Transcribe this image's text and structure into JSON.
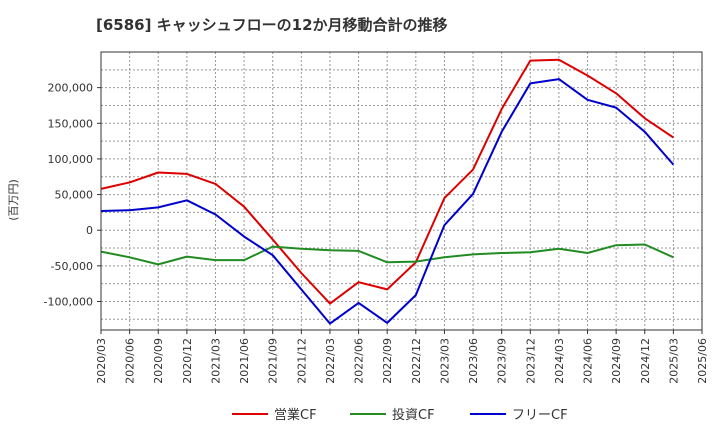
{
  "chart_data": {
    "type": "line",
    "title": "[6586]  キャッシュフローの12か月移動合計の推移",
    "ylabel": "(百万円)",
    "xlabel": "",
    "ylim": [
      -140000,
      250000
    ],
    "yticks": [
      -100000,
      -50000,
      0,
      50000,
      100000,
      150000,
      200000
    ],
    "ytick_labels": [
      "-100,000",
      "-50,000",
      "0",
      "50,000",
      "100,000",
      "150,000",
      "200,000"
    ],
    "grid": true,
    "legend_position": "bottom",
    "categories": [
      "2020/03",
      "2020/06",
      "2020/09",
      "2020/12",
      "2021/03",
      "2021/06",
      "2021/09",
      "2021/12",
      "2022/03",
      "2022/06",
      "2022/09",
      "2022/12",
      "2023/03",
      "2023/06",
      "2023/09",
      "2023/12",
      "2024/03",
      "2024/06",
      "2024/09",
      "2024/12",
      "2025/03",
      "2025/06"
    ],
    "series": [
      {
        "name": "営業CF",
        "color": "#dd0000",
        "values": [
          58000,
          67000,
          81000,
          79000,
          65000,
          33000,
          -13000,
          -60000,
          -103000,
          -73000,
          -83000,
          -45000,
          45000,
          85000,
          170000,
          238000,
          239000,
          217000,
          192000,
          157000,
          130000,
          null
        ]
      },
      {
        "name": "投資CF",
        "color": "#228b22",
        "values": [
          -30000,
          -38000,
          -48000,
          -37000,
          -42000,
          -42000,
          -23000,
          -26000,
          -28000,
          -29000,
          -45000,
          -44000,
          -38000,
          -34000,
          -32000,
          -31000,
          -26000,
          -32000,
          -21000,
          -20000,
          -38000,
          null
        ]
      },
      {
        "name": "フリーCF",
        "color": "#0000cc",
        "values": [
          27000,
          28000,
          32000,
          42000,
          22000,
          -9000,
          -35000,
          -83000,
          -131000,
          -102000,
          -130000,
          -91000,
          7000,
          51000,
          138000,
          206000,
          212000,
          183000,
          172000,
          138000,
          92000,
          null
        ]
      }
    ]
  }
}
